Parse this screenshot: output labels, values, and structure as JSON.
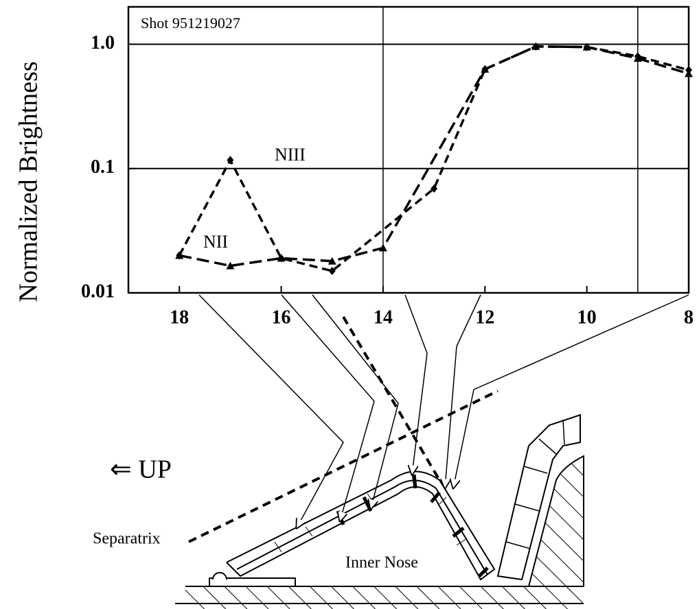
{
  "chart_data": {
    "type": "line",
    "title": "Shot 951219027",
    "ylabel": "Normalized Brightness",
    "yscale": "log",
    "xlim": [
      19,
      8
    ],
    "ylim": [
      0.01,
      2
    ],
    "xticks": [
      18,
      16,
      14,
      12,
      10,
      8
    ],
    "yticks": [
      0.01,
      0.1,
      {
        "value": 1,
        "label": "1.0"
      }
    ],
    "xgrid": [
      14,
      9
    ],
    "ygrid": [
      1,
      0.1
    ],
    "series": [
      {
        "name": "NIII",
        "color": "#000000",
        "marker": "diamond",
        "x": [
          18,
          17,
          16,
          15,
          13,
          12,
          11,
          10,
          9,
          8
        ],
        "values": [
          0.02,
          0.117,
          0.019,
          0.015,
          0.069,
          0.63,
          0.96,
          0.95,
          0.8,
          0.62
        ]
      },
      {
        "name": "NII",
        "color": "#000000",
        "marker": "triangle",
        "x": [
          18,
          17,
          16,
          15,
          14,
          12,
          11,
          10,
          9,
          8
        ],
        "values": [
          0.02,
          0.0165,
          0.019,
          0.018,
          0.023,
          0.63,
          0.96,
          0.95,
          0.77,
          0.58
        ]
      }
    ],
    "annotations": [
      "⇐ UP",
      "Separatrix",
      "Inner Nose"
    ]
  }
}
